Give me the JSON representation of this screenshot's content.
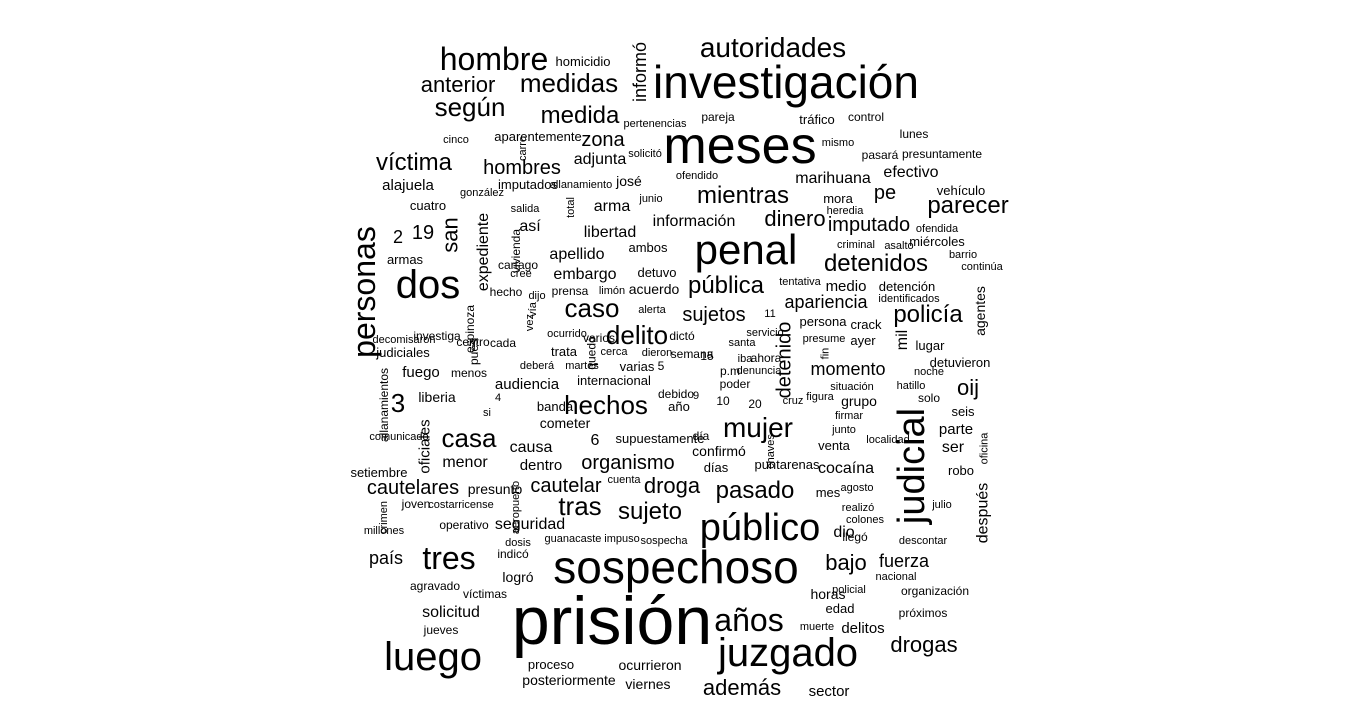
{
  "text_color": "#000000",
  "background": "#ffffff",
  "words": [
    {
      "text": "prisión",
      "size": 68
    },
    {
      "text": "investigación",
      "size": 46
    },
    {
      "text": "meses",
      "size": 52
    },
    {
      "text": "sospechoso",
      "size": 46
    },
    {
      "text": "penal",
      "size": 42
    },
    {
      "text": "juzgado",
      "size": 40
    },
    {
      "text": "público",
      "size": 38
    },
    {
      "text": "luego",
      "size": 40
    },
    {
      "text": "dos",
      "size": 40
    },
    {
      "text": "judicial",
      "size": 38,
      "rotated": true
    },
    {
      "text": "personas",
      "size": 32,
      "rotated": true
    },
    {
      "text": "años",
      "size": 32
    },
    {
      "text": "tres",
      "size": 32
    },
    {
      "text": "hombre",
      "size": 32
    },
    {
      "text": "autoridades",
      "size": 28
    },
    {
      "text": "mujer",
      "size": 28
    },
    {
      "text": "hechos",
      "size": 26
    },
    {
      "text": "casa",
      "size": 26
    },
    {
      "text": "caso",
      "size": 26
    },
    {
      "text": "delito",
      "size": 26
    },
    {
      "text": "medidas",
      "size": 26
    },
    {
      "text": "según",
      "size": 26
    },
    {
      "text": "medida",
      "size": 24
    },
    {
      "text": "víctima",
      "size": 24
    },
    {
      "text": "detenidos",
      "size": 24
    },
    {
      "text": "parecer",
      "size": 24
    },
    {
      "text": "policía",
      "size": 24
    },
    {
      "text": "mientras",
      "size": 24
    },
    {
      "text": "pública",
      "size": 24
    },
    {
      "text": "tras",
      "size": 26
    },
    {
      "text": "sujeto",
      "size": 24
    },
    {
      "text": "pasado",
      "size": 24
    },
    {
      "text": "drogas",
      "size": 22
    },
    {
      "text": "además",
      "size": 22
    },
    {
      "text": "bajo",
      "size": 22
    },
    {
      "text": "3",
      "size": 26
    },
    {
      "text": "anterior",
      "size": 22
    },
    {
      "text": "dinero",
      "size": 22
    },
    {
      "text": "zona",
      "size": 20
    },
    {
      "text": "oij",
      "size": 22
    },
    {
      "text": "san",
      "size": 22,
      "rotated": true
    },
    {
      "text": "droga",
      "size": 22
    },
    {
      "text": "organismo",
      "size": 20
    },
    {
      "text": "cautelar",
      "size": 20
    },
    {
      "text": "imputado",
      "size": 20
    },
    {
      "text": "hombres",
      "size": 20
    },
    {
      "text": "sujetos",
      "size": 20
    },
    {
      "text": "informó",
      "size": 18,
      "rotated": true
    },
    {
      "text": "detenido",
      "size": 20,
      "rotated": true
    },
    {
      "text": "pe",
      "size": 20
    },
    {
      "text": "19",
      "size": 20
    },
    {
      "text": "2",
      "size": 18
    },
    {
      "text": "cautelares",
      "size": 20
    },
    {
      "text": "país",
      "size": 18
    },
    {
      "text": "fuerza",
      "size": 18
    },
    {
      "text": "apariencia",
      "size": 18
    },
    {
      "text": "momento",
      "size": 18
    },
    {
      "text": "marihuana",
      "size": 16
    },
    {
      "text": "efectivo",
      "size": 16
    },
    {
      "text": "cocaína",
      "size": 16
    },
    {
      "text": "seguridad",
      "size": 16
    },
    {
      "text": "solicitud",
      "size": 16
    },
    {
      "text": "después",
      "size": 16,
      "rotated": true
    },
    {
      "text": "menor",
      "size": 16
    },
    {
      "text": "información",
      "size": 16
    },
    {
      "text": "adjunta",
      "size": 16
    },
    {
      "text": "libertad",
      "size": 16
    },
    {
      "text": "arma",
      "size": 16
    },
    {
      "text": "apellido",
      "size": 16
    },
    {
      "text": "embargo",
      "size": 16
    },
    {
      "text": "expediente",
      "size": 16,
      "rotated": true
    },
    {
      "text": "causa",
      "size": 16
    },
    {
      "text": "dentro",
      "size": 15
    },
    {
      "text": "audiencia",
      "size": 15
    },
    {
      "text": "fuego",
      "size": 15
    },
    {
      "text": "así",
      "size": 16
    },
    {
      "text": "mil",
      "size": 16,
      "rotated": true
    },
    {
      "text": "dio",
      "size": 16
    },
    {
      "text": "ser",
      "size": 16
    },
    {
      "text": "parte",
      "size": 15
    },
    {
      "text": "medio",
      "size": 15
    },
    {
      "text": "oficiales",
      "size": 15,
      "rotated": true
    },
    {
      "text": "alajuela",
      "size": 15
    },
    {
      "text": "delitos",
      "size": 15
    },
    {
      "text": "agentes",
      "size": 14,
      "rotated": true
    },
    {
      "text": "horas",
      "size": 14
    },
    {
      "text": "logró",
      "size": 14
    },
    {
      "text": "sector",
      "size": 15
    },
    {
      "text": "6",
      "size": 16
    },
    {
      "text": "acuerdo",
      "size": 14
    },
    {
      "text": "grupo",
      "size": 14
    },
    {
      "text": "confirmó",
      "size": 14
    },
    {
      "text": "cometer",
      "size": 14
    },
    {
      "text": "captura",
      "size": 14
    },
    {
      "text": "fiscalía",
      "size": 14,
      "hidden": true
    },
    {
      "text": "supuestamente",
      "size": 13
    },
    {
      "text": "proceso",
      "size": 13
    },
    {
      "text": "posteriormente",
      "size": 14
    },
    {
      "text": "viernes",
      "size": 14
    },
    {
      "text": "ocurrieron",
      "size": 14
    },
    {
      "text": "detuvo",
      "size": 13
    },
    {
      "text": "ambos",
      "size": 13
    },
    {
      "text": "presunto",
      "size": 14
    },
    {
      "text": "robo",
      "size": 13
    },
    {
      "text": "liberia",
      "size": 14
    },
    {
      "text": "edad",
      "size": 13
    },
    {
      "text": "imputados",
      "size": 13
    },
    {
      "text": "lugar",
      "size": 13
    },
    {
      "text": "josé",
      "size": 14
    },
    {
      "text": "persona",
      "size": 13
    },
    {
      "text": "crack",
      "size": 13
    },
    {
      "text": "ayer",
      "size": 13
    },
    {
      "text": "seis",
      "size": 13
    },
    {
      "text": "banda",
      "size": 13
    },
    {
      "text": "trata",
      "size": 13
    },
    {
      "text": "varias",
      "size": 13
    },
    {
      "text": "venta",
      "size": 13
    },
    {
      "text": "setiembre",
      "size": 13
    },
    {
      "text": "cuatro",
      "size": 13
    },
    {
      "text": "judiciales",
      "size": 13
    },
    {
      "text": "armas",
      "size": 13
    },
    {
      "text": "menos",
      "size": 12
    },
    {
      "text": "mora",
      "size": 13
    },
    {
      "text": "vehículo",
      "size": 13
    },
    {
      "text": "detención",
      "size": 13
    },
    {
      "text": "detuvieron",
      "size": 13
    },
    {
      "text": "miércoles",
      "size": 13
    },
    {
      "text": "tráfico",
      "size": 13
    },
    {
      "text": "control",
      "size": 12
    },
    {
      "text": "lunes",
      "size": 12
    },
    {
      "text": "presuntamente",
      "size": 12
    },
    {
      "text": "pasará",
      "size": 12
    },
    {
      "text": "pareja",
      "size": 12
    },
    {
      "text": "aparentemente",
      "size": 13
    },
    {
      "text": "homicidio",
      "size": 13
    },
    {
      "text": "joven",
      "size": 12
    },
    {
      "text": "días",
      "size": 13
    },
    {
      "text": "internacional",
      "size": 13
    },
    {
      "text": "puntarenas",
      "size": 13
    },
    {
      "text": "mes",
      "size": 13
    },
    {
      "text": "llegó",
      "size": 12
    },
    {
      "text": "indicó",
      "size": 12
    },
    {
      "text": "víctimas",
      "size": 12
    },
    {
      "text": "agravado",
      "size": 12
    },
    {
      "text": "jueves",
      "size": 12
    },
    {
      "text": "organización",
      "size": 12
    },
    {
      "text": "próximos",
      "size": 12
    },
    {
      "text": "nacional",
      "size": 11
    },
    {
      "text": "policial",
      "size": 11
    },
    {
      "text": "muerte",
      "size": 11
    },
    {
      "text": "realizó",
      "size": 11
    },
    {
      "text": "colones",
      "size": 11
    },
    {
      "text": "descontar",
      "size": 11
    },
    {
      "text": "julio",
      "size": 11
    },
    {
      "text": "oficina",
      "size": 11,
      "rotated": true
    },
    {
      "text": "solo",
      "size": 12
    },
    {
      "text": "noche",
      "size": 11
    },
    {
      "text": "hatillo",
      "size": 11
    },
    {
      "text": "situación",
      "size": 11
    },
    {
      "text": "firmar",
      "size": 11
    },
    {
      "text": "junto",
      "size": 11
    },
    {
      "text": "localidad",
      "size": 11
    },
    {
      "text": "chaves",
      "size": 11,
      "rotated": true
    },
    {
      "text": "debido",
      "size": 12
    },
    {
      "text": "día",
      "size": 12
    },
    {
      "text": "año",
      "size": 13
    },
    {
      "text": "10",
      "size": 12
    },
    {
      "text": "20",
      "size": 12
    },
    {
      "text": "poder",
      "size": 12
    },
    {
      "text": "p.m",
      "size": 12
    },
    {
      "text": "denuncia",
      "size": 11
    },
    {
      "text": "ahora",
      "size": 12
    },
    {
      "text": "iba",
      "size": 11
    },
    {
      "text": "santa",
      "size": 11
    },
    {
      "text": "fin",
      "size": 11,
      "rotated": true
    },
    {
      "text": "presume",
      "size": 11
    },
    {
      "text": "identificados",
      "size": 11
    },
    {
      "text": "barrio",
      "size": 11
    },
    {
      "text": "continúa",
      "size": 11
    },
    {
      "text": "ofendida",
      "size": 11
    },
    {
      "text": "criminal",
      "size": 11
    },
    {
      "text": "asalto",
      "size": 11
    },
    {
      "text": "heredia",
      "size": 11
    },
    {
      "text": "mismo",
      "size": 11
    },
    {
      "text": "ofendido",
      "size": 11
    },
    {
      "text": "junio",
      "size": 11
    },
    {
      "text": "pertenencias",
      "size": 11
    },
    {
      "text": "solicitó",
      "size": 11
    },
    {
      "text": "cinco",
      "size": 11
    },
    {
      "text": "carro",
      "size": 11,
      "rotated": true
    },
    {
      "text": "allanamiento",
      "size": 11
    },
    {
      "text": "gonzález",
      "size": 11
    },
    {
      "text": "total",
      "size": 11,
      "rotated": true
    },
    {
      "text": "salida",
      "size": 11
    },
    {
      "text": "vivienda",
      "size": 12,
      "rotated": true
    },
    {
      "text": "cartago",
      "size": 12
    },
    {
      "text": "cree",
      "size": 11
    },
    {
      "text": "hecho",
      "size": 12
    },
    {
      "text": "prensa",
      "size": 12
    },
    {
      "text": "dijo",
      "size": 11
    },
    {
      "text": "limón",
      "size": 11
    },
    {
      "text": "alerta",
      "size": 11
    },
    {
      "text": "11",
      "size": 11
    },
    {
      "text": "servicio",
      "size": 11
    },
    {
      "text": "vía",
      "size": 11,
      "rotated": true
    },
    {
      "text": "vez",
      "size": 11,
      "rotated": true
    },
    {
      "text": "cada",
      "size": 12
    },
    {
      "text": "ocurrido",
      "size": 11
    },
    {
      "text": "espinoza",
      "size": 12,
      "rotated": true
    },
    {
      "text": "investiga",
      "size": 12
    },
    {
      "text": "centro",
      "size": 12
    },
    {
      "text": "decomisaron",
      "size": 11
    },
    {
      "text": "pues",
      "size": 12,
      "rotated": true
    },
    {
      "text": "deberá",
      "size": 11
    },
    {
      "text": "martes",
      "size": 11
    },
    {
      "text": "cerca",
      "size": 11
    },
    {
      "text": "dieron",
      "size": 11
    },
    {
      "text": "semana",
      "size": 12
    },
    {
      "text": "dictó",
      "size": 12
    },
    {
      "text": "varios",
      "size": 12
    },
    {
      "text": "quedó",
      "size": 12,
      "rotated": true
    },
    {
      "text": "15",
      "size": 12
    },
    {
      "text": "5",
      "size": 12
    },
    {
      "text": "9",
      "size": 11
    },
    {
      "text": "4",
      "size": 11
    },
    {
      "text": "si",
      "size": 11
    },
    {
      "text": "allanamientos",
      "size": 12,
      "rotated": true
    },
    {
      "text": "comunicado",
      "size": 11
    },
    {
      "text": "costarricense",
      "size": 11
    },
    {
      "text": "aeropuerto",
      "size": 11,
      "rotated": true
    },
    {
      "text": "crimen",
      "size": 11,
      "rotated": true
    },
    {
      "text": "operativo",
      "size": 12
    },
    {
      "text": "millones",
      "size": 11
    },
    {
      "text": "guanacaste",
      "size": 11
    },
    {
      "text": "impuso",
      "size": 11
    },
    {
      "text": "sospecha",
      "size": 11
    },
    {
      "text": "dosis",
      "size": 11
    },
    {
      "text": "cuenta",
      "size": 11
    },
    {
      "text": "agosto",
      "size": 11
    },
    {
      "text": "tentativa",
      "size": 11
    },
    {
      "text": "cruz",
      "size": 11
    },
    {
      "text": "figura",
      "size": 11
    },
    {
      "text": "salir",
      "size": 12
    },
    {
      "text": "perjuicio",
      "size": 11,
      "rotated": true
    },
    {
      "text": "jiménez",
      "size": 11,
      "rotated": true
    }
  ]
}
